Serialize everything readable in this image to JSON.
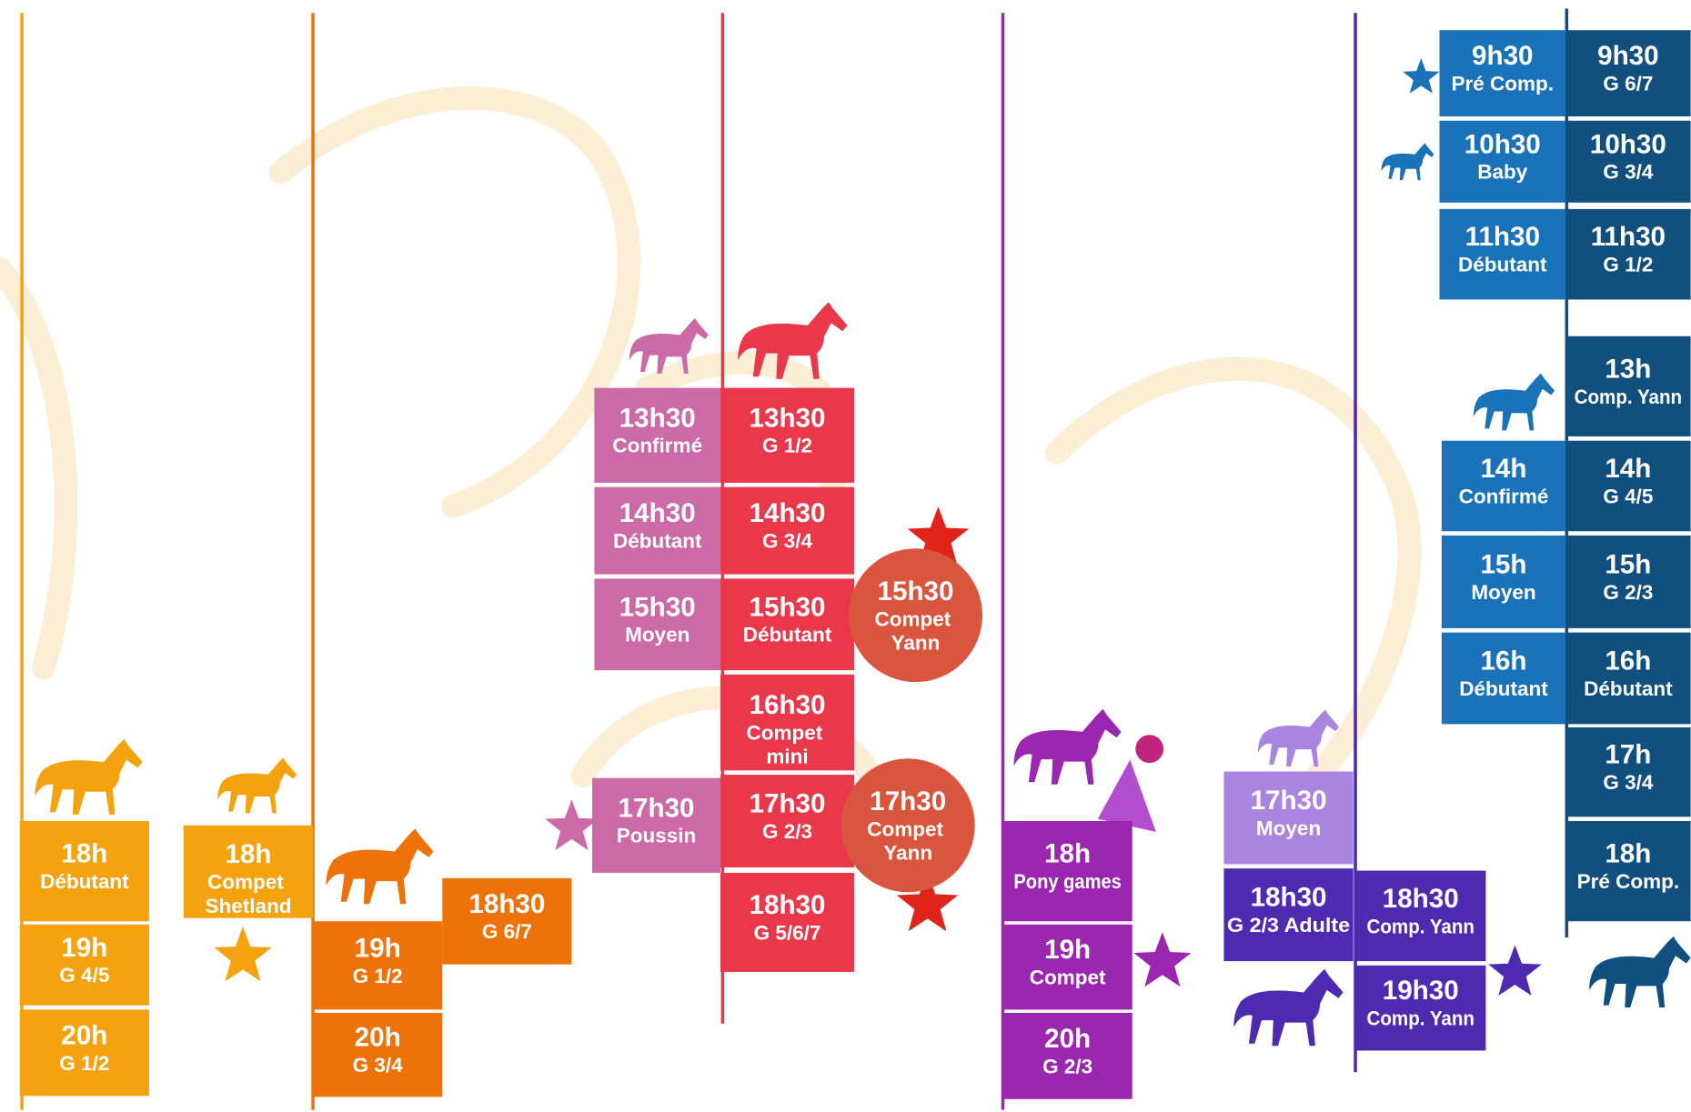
{
  "blocks": [
    {
      "time": "18h",
      "label": "Débutant"
    },
    {
      "time": "19h",
      "label": "G 4/5"
    },
    {
      "time": "20h",
      "label": "G 1/2"
    },
    {
      "time": "18h",
      "label": "Compet Shetland"
    },
    {
      "time": "19h",
      "label": "G 1/2"
    },
    {
      "time": "20h",
      "label": "G 3/4"
    },
    {
      "time": "18h30",
      "label": "G 6/7"
    },
    {
      "time": "13h30",
      "label": "Confirmé"
    },
    {
      "time": "14h30",
      "label": "Débutant"
    },
    {
      "time": "15h30",
      "label": "Moyen"
    },
    {
      "time": "17h30",
      "label": "Poussin"
    },
    {
      "time": "13h30",
      "label": "G 1/2"
    },
    {
      "time": "14h30",
      "label": "G 3/4"
    },
    {
      "time": "15h30",
      "label": "Débutant"
    },
    {
      "time": "16h30",
      "label": "Compet mini"
    },
    {
      "time": "17h30",
      "label": "G 2/3"
    },
    {
      "time": "18h30",
      "label": "G 5/6/7"
    },
    {
      "time": "15h30",
      "label": "Compet Yann"
    },
    {
      "time": "17h30",
      "label": "Compet Yann"
    },
    {
      "time": "18h",
      "label": "Pony games"
    },
    {
      "time": "19h",
      "label": "Compet"
    },
    {
      "time": "20h",
      "label": "G 2/3"
    },
    {
      "time": "17h30",
      "label": "Moyen"
    },
    {
      "time": "18h30",
      "label": "G 2/3 Adulte"
    },
    {
      "time": "18h30",
      "label": "Comp. Yann"
    },
    {
      "time": "19h30",
      "label": "Comp. Yann"
    },
    {
      "time": "9h30",
      "label": "Pré Comp."
    },
    {
      "time": "10h30",
      "label": "Baby"
    },
    {
      "time": "11h30",
      "label": "Débutant"
    },
    {
      "time": "14h",
      "label": "Confirmé"
    },
    {
      "time": "15h",
      "label": "Moyen"
    },
    {
      "time": "16h",
      "label": "Débutant"
    },
    {
      "time": "9h30",
      "label": "G 6/7"
    },
    {
      "time": "10h30",
      "label": "G 3/4"
    },
    {
      "time": "11h30",
      "label": "G 1/2"
    },
    {
      "time": "13h",
      "label": "Comp. Yann"
    },
    {
      "time": "14h",
      "label": "G 4/5"
    },
    {
      "time": "15h",
      "label": "G 2/3"
    },
    {
      "time": "16h",
      "label": "Débutant"
    },
    {
      "time": "17h",
      "label": "G 3/4"
    },
    {
      "time": "18h",
      "label": "Pré Comp."
    }
  ]
}
